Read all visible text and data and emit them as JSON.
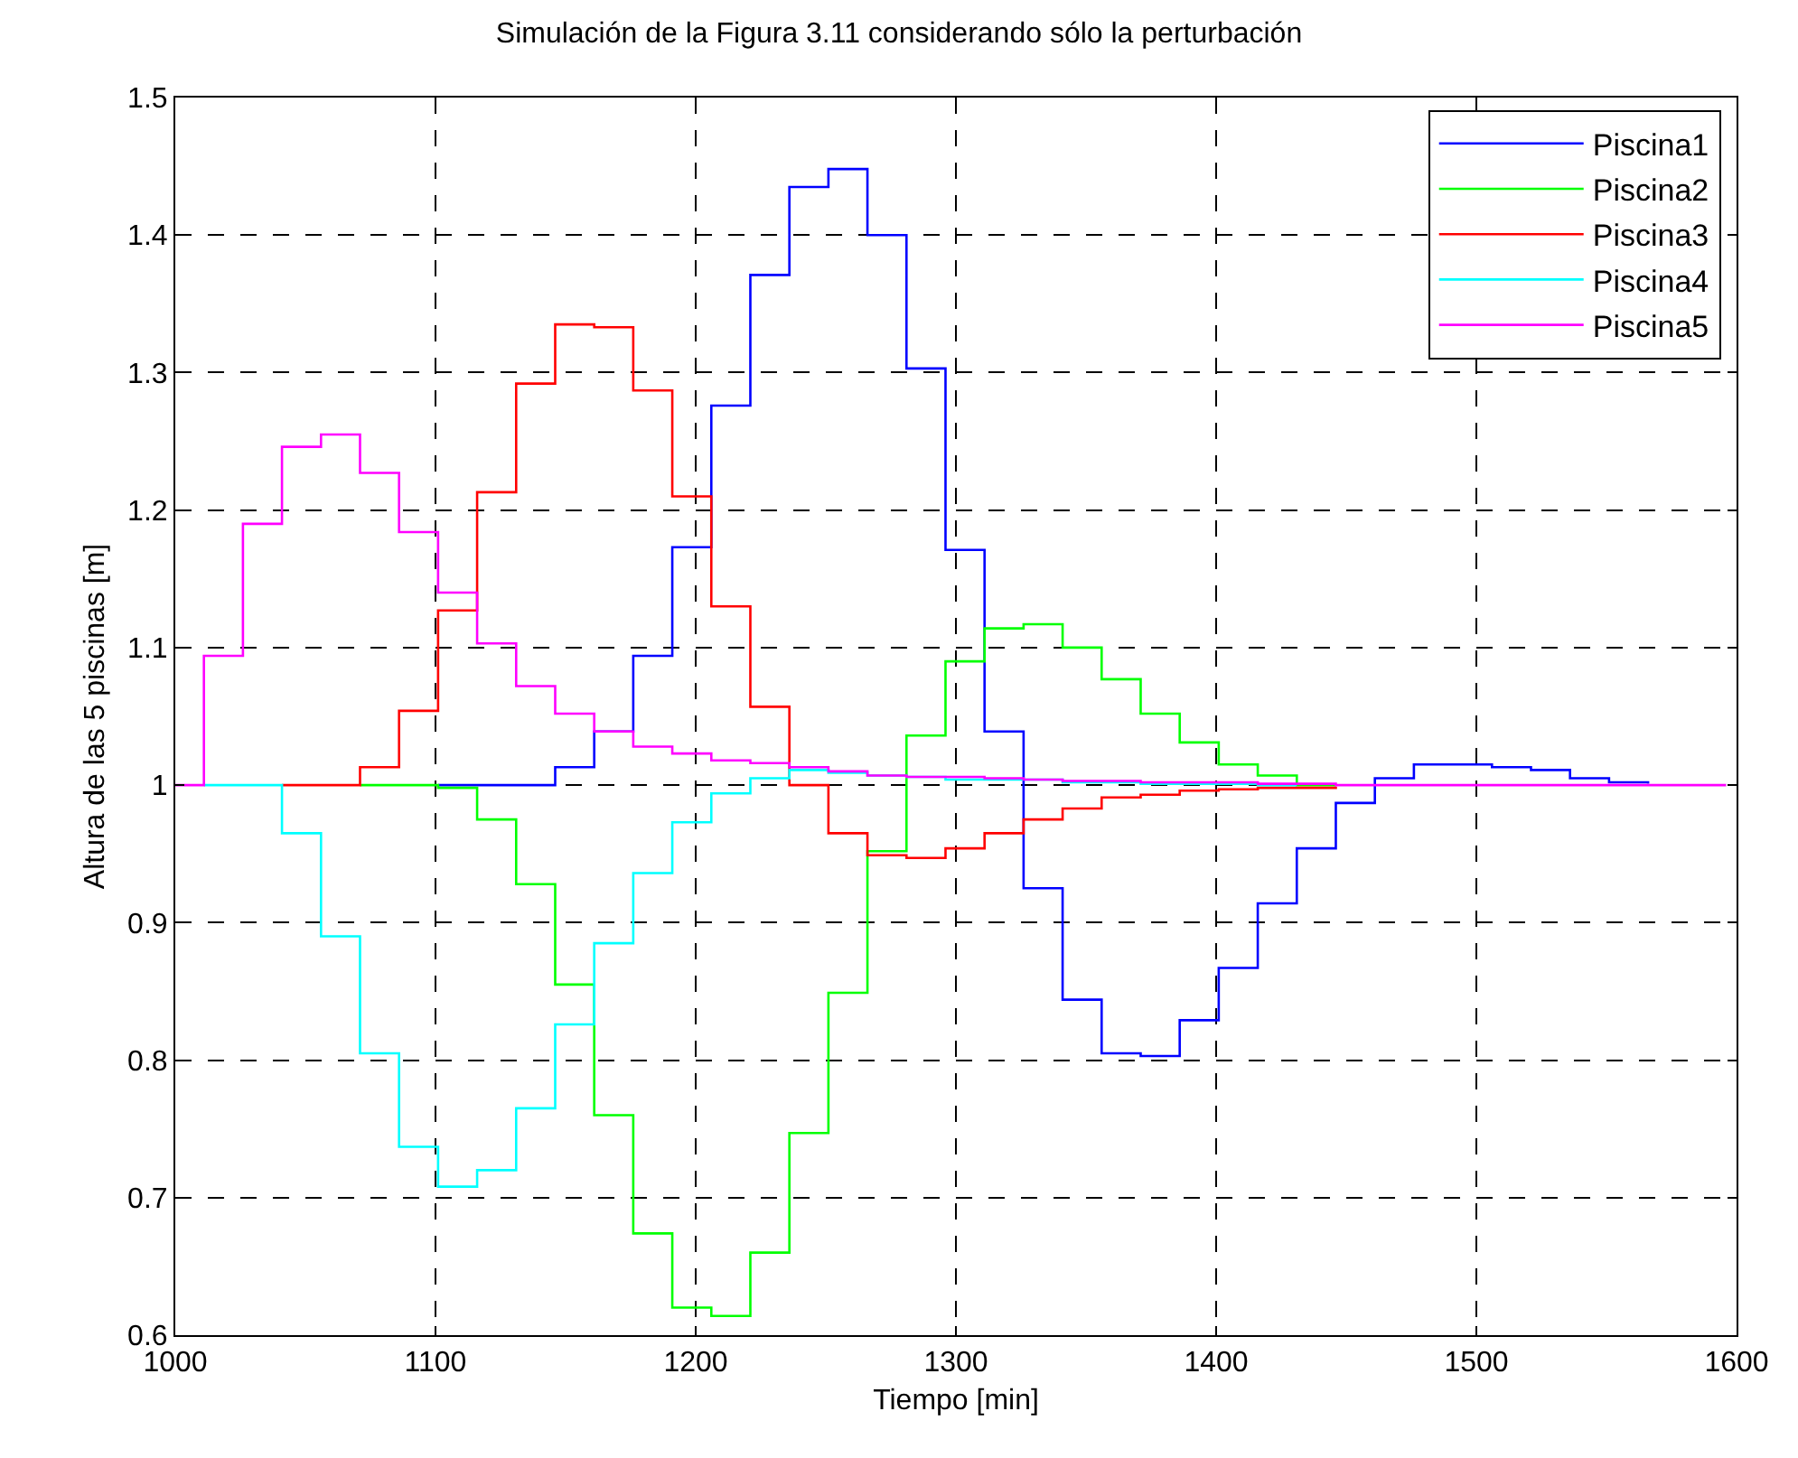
{
  "chart_data": {
    "type": "step",
    "title": "Simulación de la Figura 3.11 considerando sólo la perturbación",
    "xlabel": "Tiempo [min]",
    "ylabel": "Altura de las 5 piscinas [m]",
    "x": [
      1000,
      1011,
      1026,
      1041,
      1056,
      1071,
      1086,
      1101,
      1116,
      1131,
      1146,
      1161,
      1176,
      1191,
      1206,
      1221,
      1236,
      1251,
      1266,
      1281,
      1296,
      1311,
      1326,
      1341,
      1356,
      1371,
      1386,
      1401,
      1416,
      1431,
      1446,
      1461,
      1476,
      1491,
      1506,
      1521,
      1536,
      1551,
      1566,
      1581,
      1596
    ],
    "series": [
      {
        "name": "Piscina1",
        "color": "#0000ff",
        "values": [
          null,
          null,
          null,
          null,
          null,
          null,
          null,
          1.0,
          1.0,
          1.0,
          1.013,
          1.039,
          1.094,
          1.173,
          1.276,
          1.371,
          1.435,
          1.448,
          1.4,
          1.303,
          1.171,
          1.039,
          0.925,
          0.844,
          0.805,
          0.803,
          0.829,
          0.867,
          0.914,
          0.954,
          0.987,
          1.005,
          1.015,
          1.015,
          1.013,
          1.011,
          1.005,
          1.002,
          1.001,
          null,
          null
        ]
      },
      {
        "name": "Piscina2",
        "color": "#00ff00",
        "values": [
          null,
          null,
          null,
          null,
          null,
          1.0,
          1.0,
          0.998,
          0.975,
          0.928,
          0.855,
          0.76,
          0.674,
          0.62,
          0.614,
          0.66,
          0.747,
          0.849,
          0.952,
          1.036,
          1.09,
          1.114,
          1.117,
          1.1,
          1.077,
          1.052,
          1.031,
          1.015,
          1.007,
          1.0,
          1.0,
          null,
          null,
          null,
          null,
          null,
          null,
          null,
          null,
          null,
          null
        ]
      },
      {
        "name": "Piscina3",
        "color": "#ff0000",
        "values": [
          null,
          null,
          null,
          1.0,
          1.0,
          1.013,
          1.054,
          1.127,
          1.213,
          1.292,
          1.335,
          1.333,
          1.287,
          1.21,
          1.13,
          1.057,
          1.0,
          0.965,
          0.949,
          0.947,
          0.954,
          0.965,
          0.975,
          0.983,
          0.991,
          0.993,
          0.996,
          0.997,
          0.998,
          0.998,
          0.999,
          null,
          null,
          null,
          null,
          null,
          null,
          null,
          null,
          null,
          null
        ]
      },
      {
        "name": "Piscina4",
        "color": "#00ffff",
        "values": [
          null,
          1.0,
          1.0,
          0.965,
          0.89,
          0.805,
          0.737,
          0.708,
          0.72,
          0.765,
          0.826,
          0.885,
          0.936,
          0.973,
          0.994,
          1.005,
          1.011,
          1.009,
          1.007,
          1.006,
          1.004,
          1.004,
          1.004,
          1.002,
          1.002,
          1.001,
          1.001,
          1.001,
          1.0,
          1.0,
          null,
          null,
          null,
          null,
          null,
          null,
          null,
          null,
          null,
          null,
          null
        ]
      },
      {
        "name": "Piscina5",
        "color": "#ff00ff",
        "values": [
          1.0,
          1.094,
          1.19,
          1.246,
          1.255,
          1.227,
          1.184,
          1.14,
          1.103,
          1.072,
          1.052,
          1.039,
          1.028,
          1.023,
          1.018,
          1.016,
          1.013,
          1.01,
          1.007,
          1.006,
          1.006,
          1.005,
          1.004,
          1.003,
          1.003,
          1.002,
          1.002,
          1.002,
          1.001,
          1.001,
          1.0,
          1.0,
          1.0,
          1.0,
          1.0,
          1.0,
          1.0,
          1.0,
          1.0,
          1.0,
          1.0
        ]
      }
    ],
    "xlim": [
      1000,
      1600
    ],
    "xticks": [
      1000,
      1100,
      1200,
      1300,
      1400,
      1500,
      1600
    ],
    "ylim": [
      0.6,
      1.5
    ],
    "yticks": [
      0.6,
      0.7,
      0.8,
      0.9,
      1,
      1.1,
      1.2,
      1.3,
      1.4,
      1.5
    ],
    "grid": true,
    "legend": "top right",
    "line_style": "solid",
    "marker": "none"
  }
}
